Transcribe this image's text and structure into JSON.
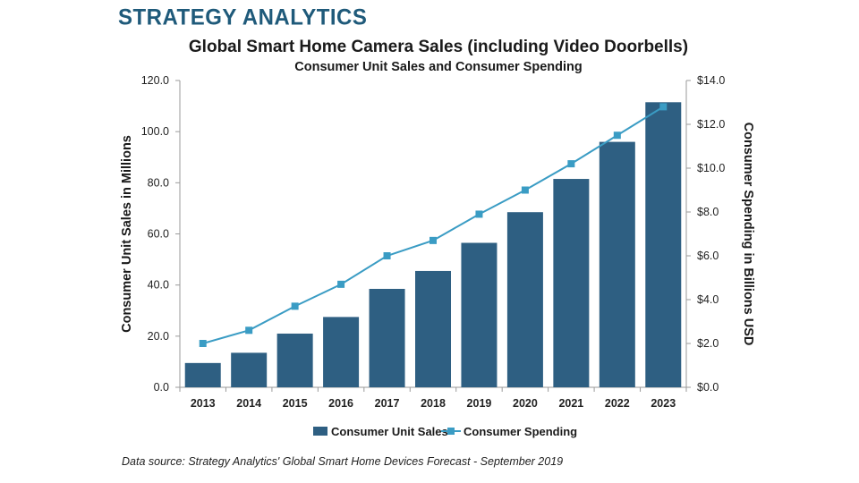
{
  "header": {
    "brand": "STRATEGY ANALYTICS"
  },
  "footer": {
    "source": "Data source: Strategy Analytics' Global Smart Home Devices Forecast - September 2019"
  },
  "colors": {
    "bar": "#2e5f82",
    "line": "#3a9cc4",
    "brand": "#1f5a7a"
  },
  "chart_data": {
    "type": "bar",
    "title": "Global Smart Home Camera Sales (including Video Doorbells)",
    "subtitle": "Consumer Unit Sales and Consumer Spending",
    "categories": [
      "2013",
      "2014",
      "2015",
      "2016",
      "2017",
      "2018",
      "2019",
      "2020",
      "2021",
      "2022",
      "2023"
    ],
    "series": [
      {
        "name": "Consumer Unit Sales",
        "type": "bar",
        "axis": "left",
        "values": [
          9.5,
          13.5,
          21.0,
          27.5,
          38.5,
          45.5,
          56.5,
          68.5,
          81.5,
          96.0,
          111.5
        ]
      },
      {
        "name": "Consumer Spending",
        "type": "line",
        "axis": "right",
        "values": [
          2.0,
          2.6,
          3.7,
          4.7,
          6.0,
          6.7,
          7.9,
          9.0,
          10.2,
          11.5,
          12.8
        ]
      }
    ],
    "ylabel": "Consumer Unit Sales in Millions",
    "ylim": [
      0,
      120
    ],
    "yticks": [
      "0.0",
      "20.0",
      "40.0",
      "60.0",
      "80.0",
      "100.0",
      "120.0"
    ],
    "y2label": "Consumer Spending in Billions USD",
    "y2lim": [
      0,
      14
    ],
    "y2ticks": [
      "$0.0",
      "$2.0",
      "$4.0",
      "$6.0",
      "$8.0",
      "$10.0",
      "$12.0",
      "$14.0"
    ],
    "xlabel": "",
    "legend": "bottom",
    "grid": false
  }
}
